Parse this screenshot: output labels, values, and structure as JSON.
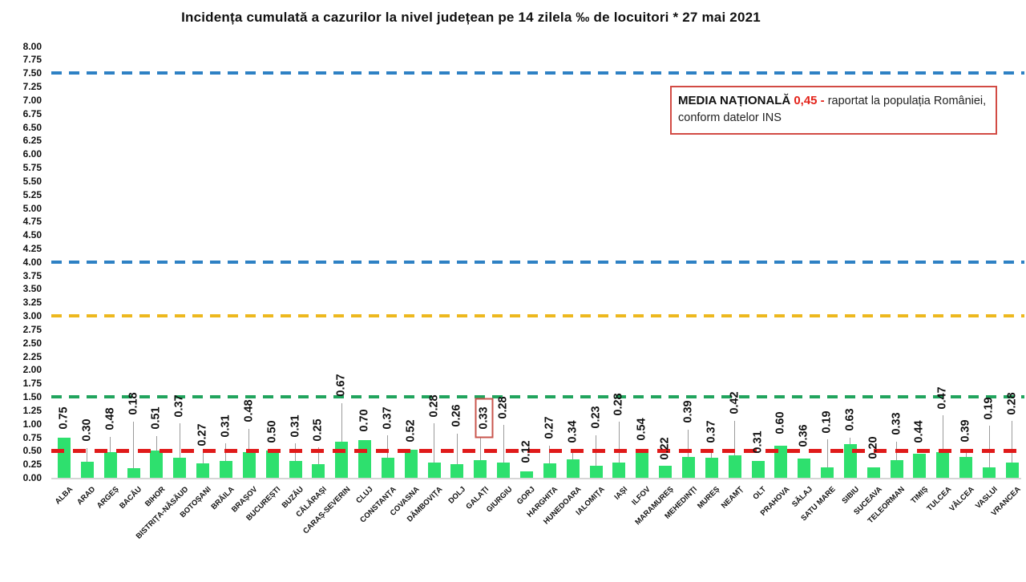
{
  "chart_data": {
    "type": "bar",
    "title": "Incidența cumulată a cazurilor la nivel județean pe 14 zilela ‰ de locuitori *  27 mai 2021",
    "categories": [
      "ALBA",
      "ARAD",
      "ARGEȘ",
      "BACĂU",
      "BIHOR",
      "BISTRIȚA-NĂSĂUD",
      "BOTOȘANI",
      "BRĂILA",
      "BRAȘOV",
      "BUCUREȘTI",
      "BUZĂU",
      "CĂLĂRAȘI",
      "CARAȘ-SEVERIN",
      "CLUJ",
      "CONSTANȚA",
      "COVASNA",
      "DÂMBOVIȚA",
      "DOLJ",
      "GALAȚI",
      "GIURGIU",
      "GORJ",
      "HARGHITA",
      "HUNEDOARA",
      "IALOMIȚA",
      "IAȘI",
      "ILFOV",
      "MARAMUREȘ",
      "MEHEDINȚI",
      "MUREȘ",
      "NEAMȚ",
      "OLT",
      "PRAHOVA",
      "SĂLAJ",
      "SATU MARE",
      "SIBIU",
      "SUCEAVA",
      "TELEORMAN",
      "TIMIȘ",
      "TULCEA",
      "VÂLCEA",
      "VASLUI",
      "VRANCEA"
    ],
    "values": [
      0.75,
      0.3,
      0.48,
      0.18,
      0.51,
      0.37,
      0.27,
      0.31,
      0.48,
      0.5,
      0.31,
      0.25,
      0.67,
      0.7,
      0.37,
      0.52,
      0.28,
      0.26,
      0.33,
      0.28,
      0.12,
      0.27,
      0.34,
      0.23,
      0.28,
      0.54,
      0.22,
      0.39,
      0.37,
      0.42,
      0.31,
      0.6,
      0.36,
      0.19,
      0.63,
      0.2,
      0.33,
      0.44,
      0.47,
      0.39,
      0.19,
      0.28
    ],
    "highlighted_category": "GALAȚI",
    "highlight_box_color": "#C9564E",
    "bar_color": "#2EE06E",
    "ylim": [
      0,
      8
    ],
    "ytick_step": 0.25,
    "grid": false,
    "reference_lines": [
      {
        "value": 7.5,
        "color": "#2E81C4"
      },
      {
        "value": 4.0,
        "color": "#2E81C4"
      },
      {
        "value": 3.0,
        "color": "#EDB81E"
      },
      {
        "value": 1.5,
        "color": "#21A45D"
      },
      {
        "value": 0.5,
        "color": "#E01A1A"
      }
    ],
    "legend": {
      "label": "MEDIA NAȚIONALĂ",
      "value": "0,45 -",
      "value_color": "#E32219",
      "description": "raportat la populația României, conform datelor INS"
    }
  }
}
